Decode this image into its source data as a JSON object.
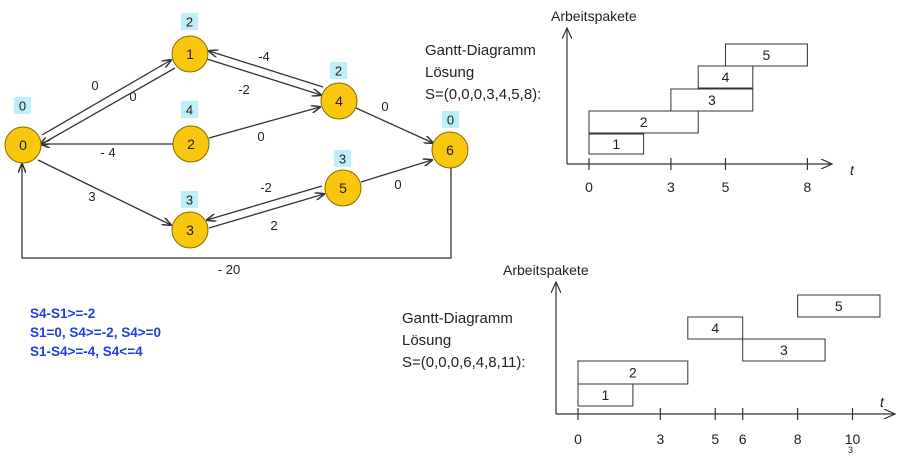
{
  "network": {
    "nodes": [
      {
        "id": "0",
        "label": "0",
        "badge": "0"
      },
      {
        "id": "1",
        "label": "1",
        "badge": "2"
      },
      {
        "id": "2",
        "label": "2",
        "badge": "4"
      },
      {
        "id": "3",
        "label": "3",
        "badge": "3"
      },
      {
        "id": "4",
        "label": "4",
        "badge": "2"
      },
      {
        "id": "5",
        "label": "5",
        "badge": "3"
      },
      {
        "id": "6",
        "label": "6",
        "badge": "0"
      }
    ],
    "edges": [
      {
        "from": "0",
        "to": "1",
        "weight": "0"
      },
      {
        "from": "1",
        "to": "0",
        "weight": "0"
      },
      {
        "from": "1",
        "to": "4",
        "weight": "-2"
      },
      {
        "from": "4",
        "to": "1",
        "weight": "-4"
      },
      {
        "from": "2",
        "to": "0",
        "weight": "- 4"
      },
      {
        "from": "2",
        "to": "4",
        "weight": "0"
      },
      {
        "from": "4",
        "to": "6",
        "weight": "0"
      },
      {
        "from": "0",
        "to": "3",
        "weight": "3"
      },
      {
        "from": "3",
        "to": "5",
        "weight": "2"
      },
      {
        "from": "5",
        "to": "3",
        "weight": "-2"
      },
      {
        "from": "5",
        "to": "6",
        "weight": "0"
      },
      {
        "from": "6",
        "to": "0",
        "weight": "- 20"
      }
    ],
    "node_color": "#f9c80e",
    "badge_color": "#bfeff6"
  },
  "constraints": [
    "S4-S1>=-2",
    "S1=0, S4>=-2, S4>=0",
    "S1-S4>=-4, S4<=4"
  ],
  "constraint_color": "#1f3fe0",
  "gantt_top": {
    "title_line1": "Gantt-Diagramm",
    "title_line2": "Lösung",
    "title_line3": "S=(0,0,0,3,4,5,8):",
    "ylabel": "Arbeitspakete",
    "xlabel": "t",
    "ticks": [
      "0",
      "3",
      "5",
      "8"
    ]
  },
  "gantt_bottom": {
    "title_line1": "Gantt-Diagramm",
    "title_line2": "Lösung",
    "title_line3": "S=(0,0,0,6,4,8,11):",
    "ylabel": "Arbeitspakete",
    "xlabel": "t",
    "ticks": [
      "0",
      "3",
      "5",
      "6",
      "8",
      "10"
    ]
  },
  "chart_data": [
    {
      "type": "bar",
      "title": "Gantt-Diagramm Lösung S=(0,0,0,3,4,5,8):",
      "ylabel": "Arbeitspakete",
      "xlabel": "t",
      "xticks": [
        0,
        3,
        5,
        8
      ],
      "tasks": [
        {
          "name": "1",
          "start": 0,
          "end": 2
        },
        {
          "name": "2",
          "start": 0,
          "end": 4
        },
        {
          "name": "3",
          "start": 3,
          "end": 6
        },
        {
          "name": "4",
          "start": 4,
          "end": 6
        },
        {
          "name": "5",
          "start": 5,
          "end": 8
        }
      ]
    },
    {
      "type": "bar",
      "title": "Gantt-Diagramm Lösung S=(0,0,0,6,4,8,11):",
      "ylabel": "Arbeitspakete",
      "xlabel": "t",
      "xticks": [
        0,
        3,
        5,
        6,
        8,
        10
      ],
      "tasks": [
        {
          "name": "1",
          "start": 0,
          "end": 2
        },
        {
          "name": "2",
          "start": 0,
          "end": 4
        },
        {
          "name": "3",
          "start": 6,
          "end": 9
        },
        {
          "name": "4",
          "start": 4,
          "end": 6
        },
        {
          "name": "5",
          "start": 8,
          "end": 11
        }
      ]
    }
  ],
  "footer": {
    "page_number": "3"
  }
}
